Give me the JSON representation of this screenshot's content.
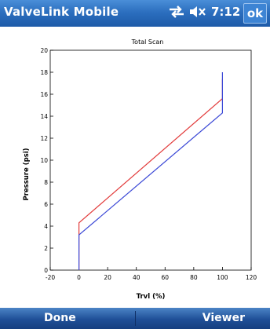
{
  "header": {
    "app_title": "ValveLink Mobile",
    "time": "7:12",
    "ok_label": "ok",
    "icons": [
      "connectivity-icon",
      "volume-muted-icon"
    ]
  },
  "menu": {
    "left_label": "Done",
    "right_label": "Viewer"
  },
  "chart_data": {
    "type": "line",
    "title": "Total Scan",
    "xlabel": "Trvl (%)",
    "ylabel": "Pressure (psi)",
    "xlim": [
      -20,
      120
    ],
    "ylim": [
      0,
      20
    ],
    "xticks": [
      -20,
      0,
      20,
      40,
      60,
      80,
      100,
      120
    ],
    "yticks": [
      0,
      2,
      4,
      6,
      8,
      10,
      12,
      14,
      16,
      18,
      20
    ],
    "grid": false,
    "series": [
      {
        "color": "#e23b3b",
        "x": [
          0,
          0,
          100,
          100,
          100
        ],
        "y": [
          0,
          4.3,
          15.6,
          16.3,
          17.4
        ]
      },
      {
        "color": "#3b48d6",
        "x": [
          0,
          0,
          100,
          100,
          100,
          100
        ],
        "y": [
          0,
          3.2,
          14.3,
          15.2,
          16.6,
          18.0
        ]
      }
    ]
  }
}
